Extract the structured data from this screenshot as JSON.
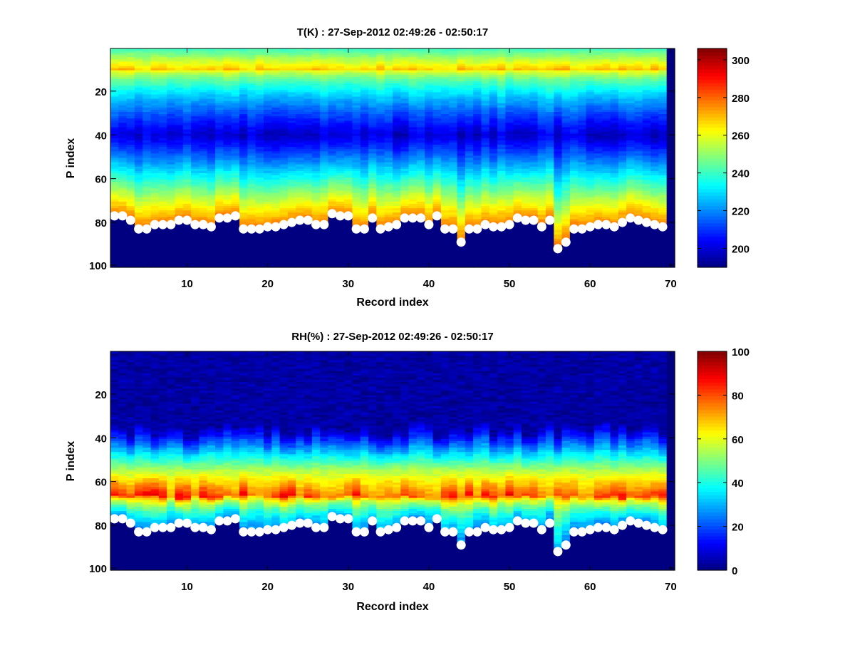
{
  "figure": {
    "background": "#ffffff",
    "colormap": "jet"
  },
  "chart_data": [
    {
      "type": "heatmap",
      "title": "T(K) : 27-Sep-2012 02:49:26 - 02:50:17",
      "xlabel": "Record index",
      "ylabel": "P index",
      "xlim": [
        0.5,
        70.5
      ],
      "ylim": [
        1,
        100
      ],
      "y_reversed": true,
      "xticks": [
        10,
        20,
        30,
        40,
        50,
        60,
        70
      ],
      "yticks": [
        20,
        40,
        60,
        80,
        100
      ],
      "grid": false,
      "colorbar": {
        "range": [
          190,
          306
        ],
        "ticks": [
          200,
          220,
          240,
          260,
          280,
          300
        ],
        "placement": "right"
      },
      "profile_description": "warm band (~260-275 K) near P index 5-15, cold minimum (~200 K) near P index 40, warming to ~270-285 K toward the surface markers; below the markers is fill value (lowest color); record 70 entirely fill",
      "markers": {
        "label": "surface level",
        "color": "#ffffff",
        "x": [
          1,
          2,
          3,
          4,
          5,
          6,
          7,
          8,
          9,
          10,
          11,
          12,
          13,
          14,
          15,
          16,
          17,
          18,
          19,
          20,
          21,
          22,
          23,
          24,
          25,
          26,
          27,
          28,
          29,
          30,
          31,
          32,
          33,
          34,
          35,
          36,
          37,
          38,
          39,
          40,
          41,
          42,
          43,
          44,
          45,
          46,
          47,
          48,
          49,
          50,
          51,
          52,
          53,
          54,
          55,
          56,
          57,
          58,
          59,
          60,
          61,
          62,
          63,
          64,
          65,
          66,
          67,
          68,
          69
        ],
        "y": [
          77,
          77,
          79,
          83,
          83,
          81,
          81,
          81,
          79,
          79,
          81,
          81,
          82,
          78,
          78,
          77,
          83,
          83,
          83,
          82,
          82,
          81,
          80,
          79,
          79,
          81,
          81,
          76,
          77,
          77,
          83,
          83,
          78,
          83,
          82,
          81,
          78,
          78,
          78,
          81,
          77,
          83,
          83,
          89,
          83,
          83,
          81,
          82,
          82,
          81,
          78,
          79,
          79,
          82,
          79,
          92,
          89,
          83,
          83,
          82,
          81,
          81,
          82,
          80,
          78,
          79,
          80,
          81,
          82
        ]
      }
    },
    {
      "type": "heatmap",
      "title": "RH(%) : 27-Sep-2012 02:49:26 - 02:50:17",
      "xlabel": "Record index",
      "ylabel": "P index",
      "xlim": [
        0.5,
        70.5
      ],
      "ylim": [
        1,
        100
      ],
      "y_reversed": true,
      "xticks": [
        10,
        20,
        30,
        40,
        50,
        60,
        70
      ],
      "yticks": [
        20,
        40,
        60,
        80,
        100
      ],
      "grid": false,
      "colorbar": {
        "range": [
          0,
          100
        ],
        "ticks": [
          0,
          20,
          40,
          60,
          80,
          100
        ],
        "placement": "right"
      },
      "profile_description": "near 0 % above P index ~35, rising through ~55-60 % around P index 50-60, peaking ~80-100 % near P index 66-69, then dropping to ~20-40 % just above the surface markers; below the markers is fill value (0)",
      "markers": {
        "label": "surface level",
        "color": "#ffffff",
        "x": [
          1,
          2,
          3,
          4,
          5,
          6,
          7,
          8,
          9,
          10,
          11,
          12,
          13,
          14,
          15,
          16,
          17,
          18,
          19,
          20,
          21,
          22,
          23,
          24,
          25,
          26,
          27,
          28,
          29,
          30,
          31,
          32,
          33,
          34,
          35,
          36,
          37,
          38,
          39,
          40,
          41,
          42,
          43,
          44,
          45,
          46,
          47,
          48,
          49,
          50,
          51,
          52,
          53,
          54,
          55,
          56,
          57,
          58,
          59,
          60,
          61,
          62,
          63,
          64,
          65,
          66,
          67,
          68,
          69
        ],
        "y": [
          77,
          77,
          79,
          83,
          83,
          81,
          81,
          81,
          79,
          79,
          81,
          81,
          82,
          78,
          78,
          77,
          83,
          83,
          83,
          82,
          82,
          81,
          80,
          79,
          79,
          81,
          81,
          76,
          77,
          77,
          83,
          83,
          78,
          83,
          82,
          81,
          78,
          78,
          78,
          81,
          77,
          83,
          83,
          89,
          83,
          83,
          81,
          82,
          82,
          81,
          78,
          79,
          79,
          82,
          79,
          92,
          89,
          83,
          83,
          82,
          81,
          81,
          82,
          80,
          78,
          79,
          80,
          81,
          82
        ]
      }
    }
  ]
}
